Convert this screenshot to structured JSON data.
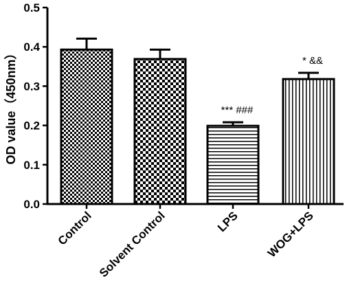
{
  "chart_data": {
    "type": "bar",
    "title": "",
    "xlabel": "",
    "ylabel": "OD value（450nm）",
    "ylim": [
      0,
      0.5
    ],
    "yticks": [
      "0.0",
      "0.1",
      "0.2",
      "0.3",
      "0.4",
      "0.5"
    ],
    "yticks_values": [
      0,
      0.1,
      0.2,
      0.3,
      0.4,
      0.5
    ],
    "grid": false,
    "categories": [
      "Control",
      "Solvent Control",
      "LPS",
      "WOG+LPS"
    ],
    "values": [
      0.393,
      0.369,
      0.199,
      0.318
    ],
    "errors": [
      0.028,
      0.024,
      0.009,
      0.016
    ],
    "annotations": [
      "",
      "",
      "*** ###",
      "* &&"
    ],
    "patterns": [
      "fine-checker",
      "coarse-checker",
      "horizontal-lines",
      "vertical-lines"
    ]
  }
}
